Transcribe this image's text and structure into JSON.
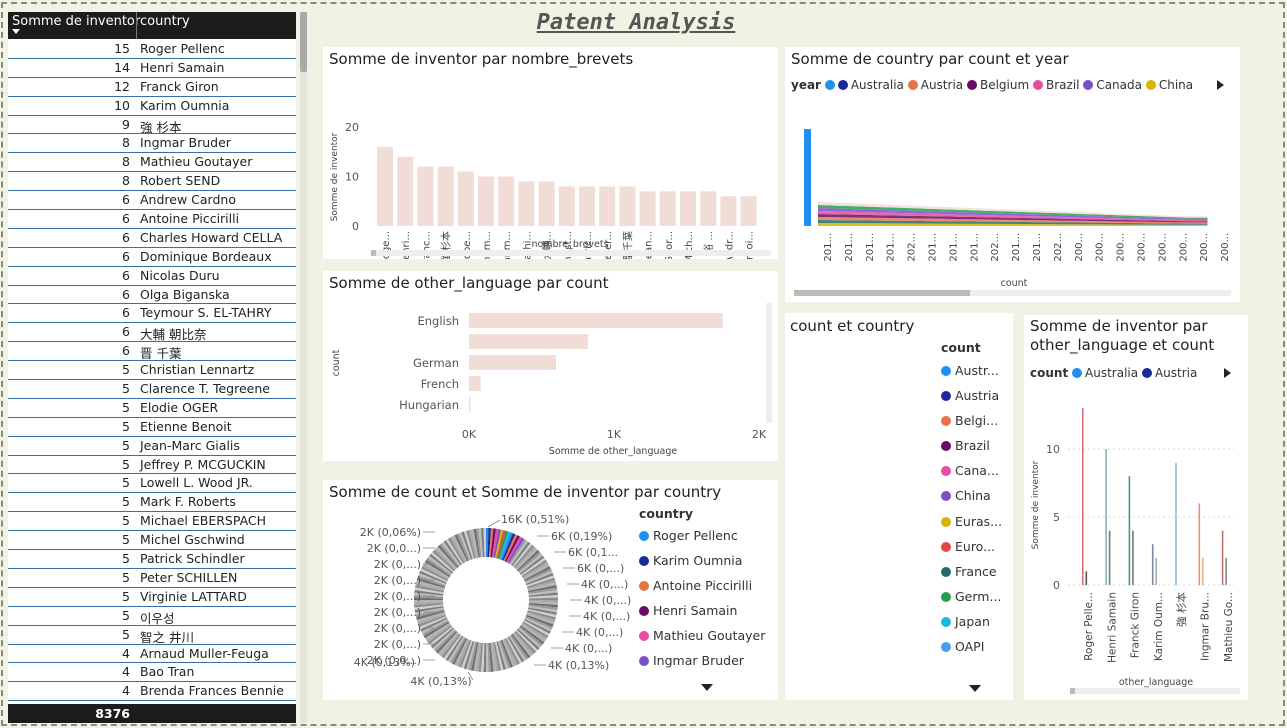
{
  "page_title": "Patent Analysis",
  "table": {
    "headers": [
      "Somme de inventor",
      "country"
    ],
    "rows": [
      [
        "15",
        "Roger Pellenc"
      ],
      [
        "14",
        "Henri Samain"
      ],
      [
        "12",
        "Franck Giron"
      ],
      [
        "10",
        "Karim Oumnia"
      ],
      [
        "9",
        "強 杉本"
      ],
      [
        "8",
        "Ingmar Bruder"
      ],
      [
        "8",
        "Mathieu Goutayer"
      ],
      [
        "8",
        "Robert SEND"
      ],
      [
        "6",
        "Andrew Cardno"
      ],
      [
        "6",
        "Antoine Piccirilli"
      ],
      [
        "6",
        "Charles Howard CELLA"
      ],
      [
        "6",
        "Dominique Bordeaux"
      ],
      [
        "6",
        "Nicolas Duru"
      ],
      [
        "6",
        "Olga Biganska"
      ],
      [
        "6",
        "Teymour S. EL-TAHRY"
      ],
      [
        "6",
        "大輔 朝比奈"
      ],
      [
        "6",
        "晋 千葉"
      ],
      [
        "5",
        "Christian Lennartz"
      ],
      [
        "5",
        "Clarence T. Tegreene"
      ],
      [
        "5",
        "Elodie OGER"
      ],
      [
        "5",
        "Etienne Benoit"
      ],
      [
        "5",
        "Jean-Marc Gialis"
      ],
      [
        "5",
        "Jeffrey P. MCGUCKIN"
      ],
      [
        "5",
        "Lowell L. Wood JR."
      ],
      [
        "5",
        "Mark F. Roberts"
      ],
      [
        "5",
        "Michael EBERSPACH"
      ],
      [
        "5",
        "Michel Gschwind"
      ],
      [
        "5",
        "Patrick Schindler"
      ],
      [
        "5",
        "Peter SCHILLEN"
      ],
      [
        "5",
        "Virginie LATTARD"
      ],
      [
        "5",
        "이우성"
      ],
      [
        "5",
        "智之 井川"
      ],
      [
        "4",
        "Arnaud Muller-Feuga"
      ],
      [
        "4",
        "Bao Tran"
      ],
      [
        "4",
        "Brenda Frances Bennie"
      ]
    ],
    "total": "8376"
  },
  "chart1": {
    "title": "Somme de inventor par nombre_brevets",
    "ylabel": "Somme de inventor",
    "xlabel": "nombre_brevets",
    "yticks": [
      "20",
      "10",
      "0"
    ],
    "bar_color": "#f2dcd6"
  },
  "chart2": {
    "title": "Somme de country par count et year",
    "legend_title": "year",
    "legend": [
      "Australia",
      "Austria",
      "Belgium",
      "Brazil",
      "Canada",
      "China"
    ],
    "legend_colors": [
      "#1f8ff0",
      "#1a2a9a",
      "#e8734a",
      "#6b0a6b",
      "#e64ca0",
      "#7b4fc9",
      "#d6b400"
    ],
    "xlabel": "count",
    "xticks": [
      "201...",
      "201...",
      "201...",
      "201...",
      "202...",
      "201...",
      "201...",
      "201...",
      "202...",
      "201...",
      "201...",
      "202...",
      "200...",
      "200...",
      "200...",
      "200...",
      "200...",
      "200...",
      "200...",
      "200..."
    ]
  },
  "chart3": {
    "title": "Somme de other_language par count",
    "ylabel": "count",
    "xlabel": "Somme de other_language",
    "xticks": [
      "0K",
      "1K",
      "2K"
    ]
  },
  "chart4": {
    "title": "Somme de count et Somme de inventor par country",
    "legend_title": "country",
    "legend": [
      "Roger Pellenc",
      "Karim Oumnia",
      "Antoine Piccirilli",
      "Henri Samain",
      "Mathieu Goutayer",
      "Ingmar Bruder"
    ],
    "legend_colors": [
      "#1f8ff0",
      "#1a2a9a",
      "#e8734a",
      "#6b0a6b",
      "#e64ca0",
      "#7b4fc9"
    ],
    "labels_left": [
      "2K (0,06%)",
      "2K (0,0...)",
      "2K (0,...)",
      "2K (0,...)",
      "2K (0,...)",
      "2K (0,...)",
      "2K (0,...)",
      "2K (0,...)",
      "2K (0,0...)",
      "4K (0,13%)"
    ],
    "labels_right": [
      "6K (0,19%)",
      "6K (0,1...",
      "6K (0,...)",
      "4K (0,...)",
      "4K (0,...)",
      "4K (0,...)",
      "4K (0,...)",
      "4K (0,...)",
      "4K (0,13%)"
    ],
    "label_top": "16K (0,51%)",
    "label_bottom": "4K (0,13%)"
  },
  "chart5": {
    "title": "count et country",
    "legend_title": "count",
    "legend": [
      "Austr...",
      "Austria",
      "Belgi...",
      "Brazil",
      "Cana...",
      "China",
      "Euras...",
      "Euro...",
      "France",
      "Germ...",
      "Japan",
      "OAPI"
    ],
    "legend_colors": [
      "#1f8ff0",
      "#1a2a9a",
      "#e8734a",
      "#6b0a6b",
      "#e64ca0",
      "#7b4fc9",
      "#d6b400",
      "#e04848",
      "#1f6b6b",
      "#22a050",
      "#1fb5e0",
      "#4a9af0"
    ]
  },
  "chart6": {
    "title_line1": "Somme de inventor par",
    "title_line2": "other_language et count",
    "legend_title": "count",
    "legend": [
      "Australia",
      "Austria"
    ],
    "legend_colors": [
      "#1f8ff0",
      "#1a2a9a"
    ],
    "ylabel": "Somme de inventor",
    "xlabel": "other_language",
    "yticks": [
      "10",
      "5",
      "0"
    ],
    "xticks": [
      "Roger Pelle...",
      "Henri Samain",
      "Franck Giron",
      "Karim Oum...",
      "強 杉本",
      "Ingmar Bru...",
      "Mathieu Go..."
    ]
  },
  "chart_data": [
    {
      "type": "bar",
      "title": "Somme de inventor par nombre_brevets",
      "categories": [
        "Roge...",
        "Henri...",
        "Franc...",
        "強 杉本",
        "Robe...",
        "Ingm...",
        "Karim...",
        "Mathi...",
        "大輔...",
        "Christ...",
        "Patric...",
        "Peter...",
        "晋 千葉",
        "Dean...",
        "Geor...",
        "Mich...",
        "裕 ...",
        "Andr...",
        "Antoi..."
      ],
      "values": [
        16,
        14,
        12,
        12,
        11,
        10,
        10,
        9,
        9,
        8,
        8,
        8,
        8,
        7,
        7,
        7,
        7,
        6,
        6
      ],
      "ylim": [
        0,
        20
      ],
      "xlabel": "nombre_brevets",
      "ylabel": "Somme de inventor"
    },
    {
      "type": "bar",
      "title": "Somme de other_language par count",
      "categories": [
        "English",
        "",
        "German",
        "French",
        "Hungarian"
      ],
      "values": [
        1750,
        820,
        600,
        80,
        10
      ],
      "xlim": [
        0,
        2000
      ],
      "xlabel": "Somme de other_language",
      "ylabel": "count"
    },
    {
      "type": "bar",
      "title": "Somme de inventor par other_language et count",
      "categories": [
        "Roger Pelle...",
        "Henri Samain",
        "Franck Giron",
        "Karim Oum...",
        "強 杉本",
        "Ingmar Bru...",
        "Mathieu Go..."
      ],
      "series": [
        {
          "name": "Australia",
          "values": [
            13,
            10,
            8,
            3,
            9,
            6,
            4
          ]
        },
        {
          "name": "Austria",
          "values": [
            1,
            4,
            4,
            2,
            0,
            2,
            2
          ]
        }
      ],
      "ylim": [
        0,
        13
      ],
      "xlabel": "other_language",
      "ylabel": "Somme de inventor"
    }
  ]
}
